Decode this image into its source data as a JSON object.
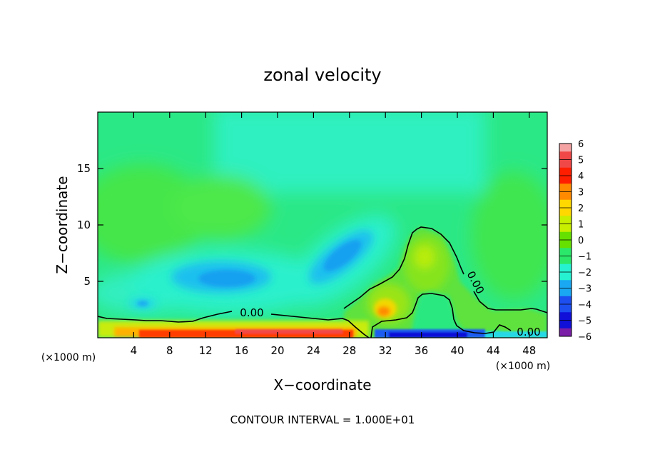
{
  "chart_data": {
    "type": "heatmap",
    "title": "zonal velocity",
    "xlabel": "X−coordinate",
    "ylabel": "Z−coordinate",
    "x_unit_left": "(×1000 m)",
    "x_unit_right": "(×1000 m)",
    "xlim": [
      0,
      50
    ],
    "ylim": [
      0,
      20
    ],
    "x_ticks": [
      {
        "value": 4,
        "label": "4"
      },
      {
        "value": 8,
        "label": "8"
      },
      {
        "value": 12,
        "label": "12"
      },
      {
        "value": 16,
        "label": "16"
      },
      {
        "value": 20,
        "label": "20"
      },
      {
        "value": 24,
        "label": "24"
      },
      {
        "value": 28,
        "label": "28"
      },
      {
        "value": 32,
        "label": "32"
      },
      {
        "value": 36,
        "label": "36"
      },
      {
        "value": 40,
        "label": "40"
      },
      {
        "value": 44,
        "label": "44"
      },
      {
        "value": 48,
        "label": "48"
      }
    ],
    "y_ticks": [
      {
        "value": 5,
        "label": "5"
      },
      {
        "value": 10,
        "label": "10"
      },
      {
        "value": 15,
        "label": "15"
      }
    ],
    "colorbar": {
      "levels": [
        {
          "value": 6,
          "label": "6",
          "color": "#f4a2a2"
        },
        {
          "value": 5,
          "label": "5",
          "color": "#f04848"
        },
        {
          "value": 4,
          "label": "4",
          "color": "#ff1e00"
        },
        {
          "value": 3,
          "label": "3",
          "color": "#ff8a00"
        },
        {
          "value": 2,
          "label": "2",
          "color": "#ffd800"
        },
        {
          "value": 1,
          "label": "1",
          "color": "#c8ee00"
        },
        {
          "value": 0,
          "label": "0",
          "color": "#66e000"
        },
        {
          "value": -1,
          "label": "−1",
          "color": "#2be86a"
        },
        {
          "value": -2,
          "label": "−2",
          "color": "#26f2d2"
        },
        {
          "value": -3,
          "label": "−3",
          "color": "#1aa8f2"
        },
        {
          "value": -4,
          "label": "−4",
          "color": "#1c4ef0"
        },
        {
          "value": -5,
          "label": "−5",
          "color": "#1010d8"
        },
        {
          "value": -6,
          "label": "−6",
          "color": "#7a1ea8"
        }
      ]
    },
    "contour_labels": [
      "0.00",
      "0.00",
      "0.00"
    ],
    "footer": "CONTOUR INTERVAL = 1.000E+01"
  }
}
